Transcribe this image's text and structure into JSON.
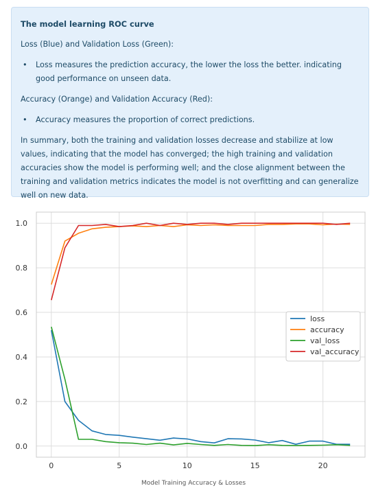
{
  "note": {
    "title": "The model learning ROC curve",
    "section1_heading": "Loss (Blue) and Validation Loss (Green):",
    "section1_bullet": "Loss measures the prediction accuracy, the lower the loss the better. indicating good performance on unseen data.",
    "section2_heading": "Accuracy (Orange) and Validation Accuracy (Red):",
    "section2_bullet": "Accuracy measures the proportion of correct predictions.",
    "summary": "In summary, both the training and validation losses decrease and stabilize at low values, indicating that the model has converged; the high training and validation accuracies show the model is performing well; and the close alignment between the training and validation metrics indicates the model is not overfitting and can generalize well on new data.",
    "bullet_glyph": "•"
  },
  "caption": "Model Training Accuracy & Losses",
  "colors": {
    "loss": "#1f77b4",
    "accuracy": "#ff7f0e",
    "val_loss": "#2ca02c",
    "val_accuracy": "#d62728",
    "alert_bg": "#e4f0fb",
    "text": "#1d4a66"
  },
  "chart_data": {
    "type": "line",
    "title": "",
    "xlabel": "",
    "ylabel": "",
    "x": [
      0,
      1,
      2,
      3,
      4,
      5,
      6,
      7,
      8,
      9,
      10,
      11,
      12,
      13,
      14,
      15,
      16,
      17,
      18,
      19,
      20,
      21,
      22
    ],
    "xlim": [
      -1.1,
      23.1
    ],
    "ylim": [
      -0.05,
      1.05
    ],
    "xticks": [
      0,
      5,
      10,
      15,
      20
    ],
    "yticks": [
      0.0,
      0.2,
      0.4,
      0.6,
      0.8,
      1.0
    ],
    "ytick_labels": [
      "0.0",
      "0.2",
      "0.4",
      "0.6",
      "0.8",
      "1.0"
    ],
    "grid": true,
    "legend_position": "center-right",
    "series": [
      {
        "name": "loss",
        "color": "#1f77b4",
        "values": [
          0.52,
          0.2,
          0.115,
          0.068,
          0.052,
          0.048,
          0.04,
          0.033,
          0.026,
          0.036,
          0.032,
          0.02,
          0.014,
          0.033,
          0.032,
          0.027,
          0.015,
          0.025,
          0.008,
          0.022,
          0.022,
          0.008,
          0.008
        ]
      },
      {
        "name": "accuracy",
        "color": "#ff7f0e",
        "values": [
          0.725,
          0.92,
          0.955,
          0.975,
          0.982,
          0.985,
          0.988,
          0.985,
          0.99,
          0.985,
          0.993,
          0.99,
          0.993,
          0.99,
          0.99,
          0.99,
          0.995,
          0.995,
          0.997,
          0.997,
          0.993,
          0.996,
          0.995
        ]
      },
      {
        "name": "val_loss",
        "color": "#2ca02c",
        "values": [
          0.535,
          0.3,
          0.03,
          0.03,
          0.02,
          0.015,
          0.013,
          0.007,
          0.013,
          0.005,
          0.012,
          0.007,
          0.003,
          0.007,
          0.003,
          0.002,
          0.006,
          0.003,
          0.002,
          0.003,
          0.004,
          0.006,
          0.003
        ]
      },
      {
        "name": "val_accuracy",
        "color": "#d62728",
        "values": [
          0.655,
          0.89,
          0.99,
          0.99,
          0.995,
          0.985,
          0.99,
          1.0,
          0.99,
          1.0,
          0.995,
          1.0,
          1.0,
          0.995,
          1.0,
          1.0,
          1.0,
          1.0,
          1.0,
          1.0,
          1.0,
          0.995,
          1.0
        ]
      }
    ]
  }
}
